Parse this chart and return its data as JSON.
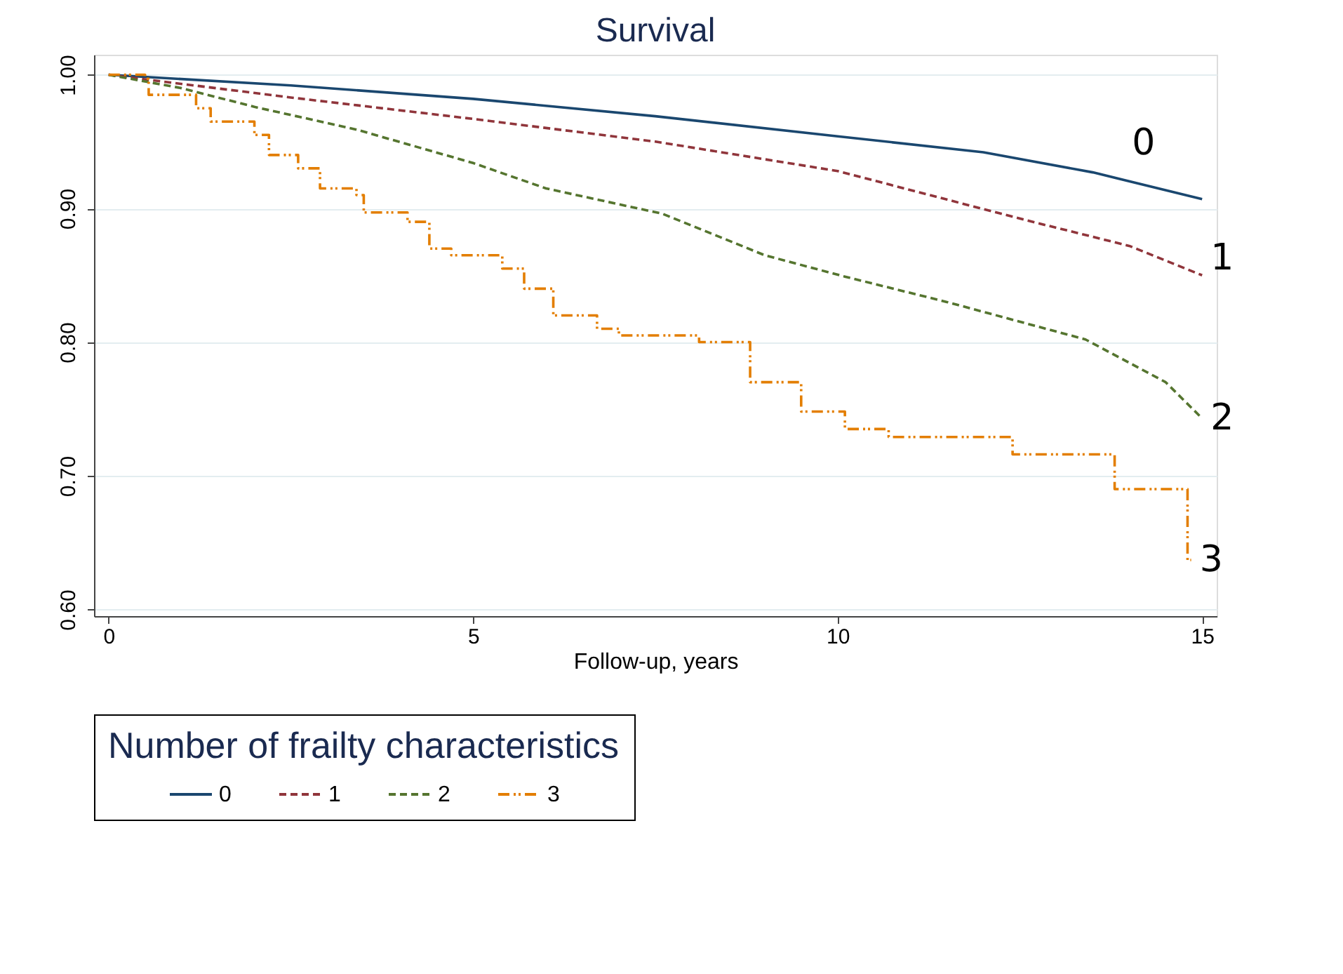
{
  "chart_data": {
    "type": "line",
    "title": "Survival",
    "xlabel": "Follow-up, years",
    "legend_title": "Number of frailty characteristics",
    "legend": "bottom",
    "grid": "y",
    "marker": "none",
    "xlim": [
      -0.2,
      15.2
    ],
    "xticks": [
      0,
      5,
      10,
      15
    ],
    "ylim": [
      0.595,
      1.015
    ],
    "yticks": [
      {
        "value": 0.6,
        "label": "0.60"
      },
      {
        "value": 0.7,
        "label": "0.70"
      },
      {
        "value": 0.8,
        "label": "0.80"
      },
      {
        "value": 0.9,
        "label": "0.90"
      },
      {
        "value": 1.0,
        "label": "1.00"
      }
    ],
    "series": [
      {
        "name": "0",
        "color": "#1a476f",
        "line_style": "solid",
        "x": [
          0,
          2.5,
          5,
          7.5,
          10,
          12,
          13.5,
          15
        ],
        "values": [
          1.0,
          0.992,
          0.982,
          0.969,
          0.954,
          0.942,
          0.927,
          0.907
        ]
      },
      {
        "name": "1",
        "color": "#90353b",
        "line_style": "dashed",
        "x": [
          0,
          2.5,
          5,
          7.5,
          10,
          12.6,
          14,
          15
        ],
        "values": [
          1.0,
          0.983,
          0.967,
          0.95,
          0.928,
          0.891,
          0.872,
          0.85
        ]
      },
      {
        "name": "2",
        "color": "#55752f",
        "line_style": "dashed",
        "x": [
          0,
          1,
          2,
          3.4,
          5,
          6,
          7.6,
          9,
          10.1,
          11.5,
          13.4,
          14.5,
          15
        ],
        "values": [
          1.0,
          0.99,
          0.976,
          0.959,
          0.934,
          0.915,
          0.896,
          0.865,
          0.849,
          0.83,
          0.802,
          0.77,
          0.743
        ]
      },
      {
        "name": "3",
        "type": "step",
        "color": "#e37e00",
        "line_style": "dotted",
        "x": [
          0,
          0.5,
          0.55,
          1.2,
          1.4,
          2.0,
          2.2,
          2.6,
          2.9,
          3.4,
          3.5,
          4.1,
          4.4,
          4.7,
          5.4,
          5.7,
          6.1,
          6.7,
          7.0,
          8.1,
          8.8,
          9.5,
          10.1,
          10.7,
          12.4,
          13.8,
          14.8,
          14.85
        ],
        "values": [
          1.0,
          0.997,
          0.985,
          0.975,
          0.965,
          0.955,
          0.94,
          0.93,
          0.915,
          0.91,
          0.897,
          0.89,
          0.87,
          0.865,
          0.855,
          0.84,
          0.82,
          0.81,
          0.805,
          0.8,
          0.77,
          0.748,
          0.735,
          0.729,
          0.716,
          0.69,
          0.637,
          0.637
        ]
      }
    ],
    "annotations": [
      "0",
      "1",
      "2",
      "3"
    ]
  }
}
